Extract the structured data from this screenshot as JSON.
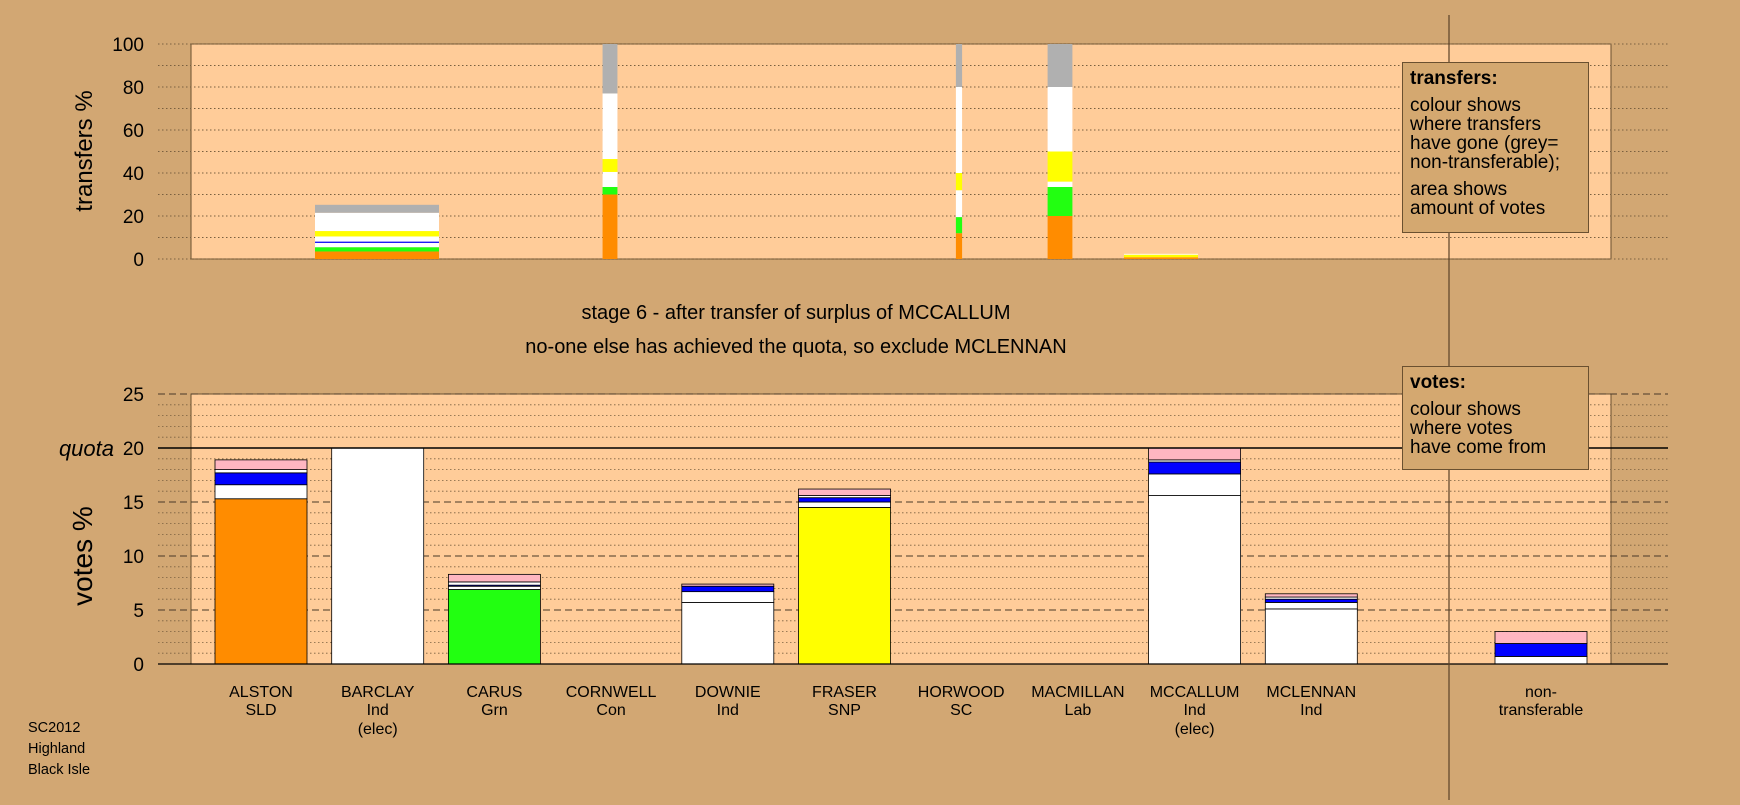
{
  "colors": {
    "background": "#d2a773",
    "plot_area": "#ffcc99",
    "SLD": "#ff8c00",
    "Ind": "#ffffff",
    "Grn": "#22ff11",
    "SNP": "#ffff00",
    "Lab": "#0000ff",
    "pink": "#ffb6c1",
    "non_transferable": "#b0b0b0"
  },
  "titles": {
    "stage": "stage 6 - after transfer of surplus of MCCALLUM",
    "action": "no-one else has achieved the quota, so exclude MCLENNAN"
  },
  "legend_transfers": {
    "heading": "transfers:",
    "lines1": [
      "colour shows",
      "where transfers",
      "have gone (grey=",
      "non-transferable);"
    ],
    "lines2": [
      "area shows",
      "amount of votes"
    ]
  },
  "legend_votes": {
    "heading": "votes:",
    "lines": [
      "colour shows",
      "where votes",
      "have come from"
    ]
  },
  "footer": [
    "SC2012",
    "Highland",
    "Black Isle"
  ],
  "chart_data": [
    {
      "type": "bar",
      "name": "transfers",
      "ylabel": "transfers %",
      "ylim": [
        0,
        100
      ],
      "yticks": [
        0,
        20,
        40,
        60,
        80,
        100
      ],
      "grid": "dotted",
      "bars": [
        {
          "candidate": "BARCLAY",
          "width_share": 1.0,
          "segments": [
            {
              "color": "SLD",
              "value": 3.5
            },
            {
              "color": "Grn",
              "value": 2
            },
            {
              "color": "Ind",
              "value": 2
            },
            {
              "color": "Lab",
              "value": 0.6
            },
            {
              "color": "Ind",
              "value": 2.4
            },
            {
              "color": "SNP",
              "value": 2.5
            },
            {
              "color": "Ind",
              "value": 8.5
            },
            {
              "color": "non_transferable",
              "value": 3.7
            }
          ]
        },
        {
          "candidate": "CORNWELL",
          "width_share": 0.12,
          "segments": [
            {
              "color": "SLD",
              "value": 30
            },
            {
              "color": "Grn",
              "value": 3.5
            },
            {
              "color": "Ind",
              "value": 7
            },
            {
              "color": "SNP",
              "value": 6
            },
            {
              "color": "Ind",
              "value": 30.5
            },
            {
              "color": "non_transferable",
              "value": 23
            }
          ]
        },
        {
          "candidate": "HORWOOD",
          "width_share": 0.05,
          "segments": [
            {
              "color": "SLD",
              "value": 12
            },
            {
              "color": "Grn",
              "value": 7.5
            },
            {
              "color": "Ind",
              "value": 12.5
            },
            {
              "color": "SNP",
              "value": 8
            },
            {
              "color": "Ind",
              "value": 40
            },
            {
              "color": "non_transferable",
              "value": 20
            }
          ]
        },
        {
          "candidate": "MACMILLAN",
          "width_share": 0.2,
          "segments": [
            {
              "color": "SLD",
              "value": 20
            },
            {
              "color": "Grn",
              "value": 13.5
            },
            {
              "color": "Ind",
              "value": 2.5
            },
            {
              "color": "SNP",
              "value": 14
            },
            {
              "color": "Ind",
              "value": 30
            },
            {
              "color": "non_transferable",
              "value": 20
            }
          ]
        },
        {
          "candidate": "MCCALLUM",
          "width_share": 0.8,
          "segments": [
            {
              "color": "SLD",
              "value": 0.8
            },
            {
              "color": "SNP",
              "value": 1.2
            },
            {
              "color": "Ind",
              "value": 0.4
            }
          ]
        }
      ]
    },
    {
      "type": "bar",
      "name": "votes",
      "ylabel": "votes %",
      "ylim": [
        0,
        25
      ],
      "yticks": [
        0,
        5,
        10,
        15,
        20,
        25
      ],
      "quota": 20,
      "quota_label": "quota",
      "grid": "dashed",
      "candidates": [
        {
          "name": "ALSTON",
          "party": "SLD",
          "elected": false,
          "segments": [
            {
              "color": "SLD",
              "value": 15.3
            },
            {
              "color": "Ind",
              "value": 1.3
            },
            {
              "color": "Lab",
              "value": 1.1
            },
            {
              "color": "Ind",
              "value": 0.3
            },
            {
              "color": "pink",
              "value": 0.9
            }
          ]
        },
        {
          "name": "BARCLAY",
          "party": "Ind",
          "elected": true,
          "segments": [
            {
              "color": "Ind",
              "value": 20
            }
          ]
        },
        {
          "name": "CARUS",
          "party": "Grn",
          "elected": false,
          "segments": [
            {
              "color": "Grn",
              "value": 6.9
            },
            {
              "color": "Ind",
              "value": 0.3
            },
            {
              "color": "Lab",
              "value": 0.1
            },
            {
              "color": "Ind",
              "value": 0.3
            },
            {
              "color": "pink",
              "value": 0.7
            }
          ]
        },
        {
          "name": "CORNWELL",
          "party": "Con",
          "elected": false,
          "segments": []
        },
        {
          "name": "DOWNIE",
          "party": "Ind",
          "elected": false,
          "segments": [
            {
              "color": "Ind",
              "value": 5.7
            },
            {
              "color": "Ind",
              "value": 1.0
            },
            {
              "color": "Lab",
              "value": 0.5
            },
            {
              "color": "pink",
              "value": 0.2
            }
          ]
        },
        {
          "name": "FRASER",
          "party": "SNP",
          "elected": false,
          "segments": [
            {
              "color": "SNP",
              "value": 14.5
            },
            {
              "color": "Ind",
              "value": 0.5
            },
            {
              "color": "Lab",
              "value": 0.4
            },
            {
              "color": "Ind",
              "value": 0.2
            },
            {
              "color": "pink",
              "value": 0.6
            }
          ]
        },
        {
          "name": "HORWOOD",
          "party": "SC",
          "elected": false,
          "segments": []
        },
        {
          "name": "MACMILLAN",
          "party": "Lab",
          "elected": false,
          "segments": []
        },
        {
          "name": "MCCALLUM",
          "party": "Ind",
          "elected": true,
          "segments": [
            {
              "color": "Ind",
              "value": 15.6
            },
            {
              "color": "Ind",
              "value": 2.0
            },
            {
              "color": "Lab",
              "value": 1.1
            },
            {
              "color": "Ind",
              "value": 0.2
            },
            {
              "color": "pink",
              "value": 1.1
            }
          ]
        },
        {
          "name": "MCLENNAN",
          "party": "Ind",
          "elected": false,
          "segments": [
            {
              "color": "Ind",
              "value": 5.1
            },
            {
              "color": "Ind",
              "value": 0.6
            },
            {
              "color": "Lab",
              "value": 0.3
            },
            {
              "color": "Ind",
              "value": 0.2
            },
            {
              "color": "pink",
              "value": 0.3
            }
          ]
        }
      ],
      "non_transferable": {
        "label": "non-\ntransferable",
        "segments": [
          {
            "color": "Ind",
            "value": 0.7
          },
          {
            "color": "Lab",
            "value": 1.2
          },
          {
            "color": "pink",
            "value": 1.1
          }
        ]
      },
      "elected_note": "(elec)"
    }
  ]
}
